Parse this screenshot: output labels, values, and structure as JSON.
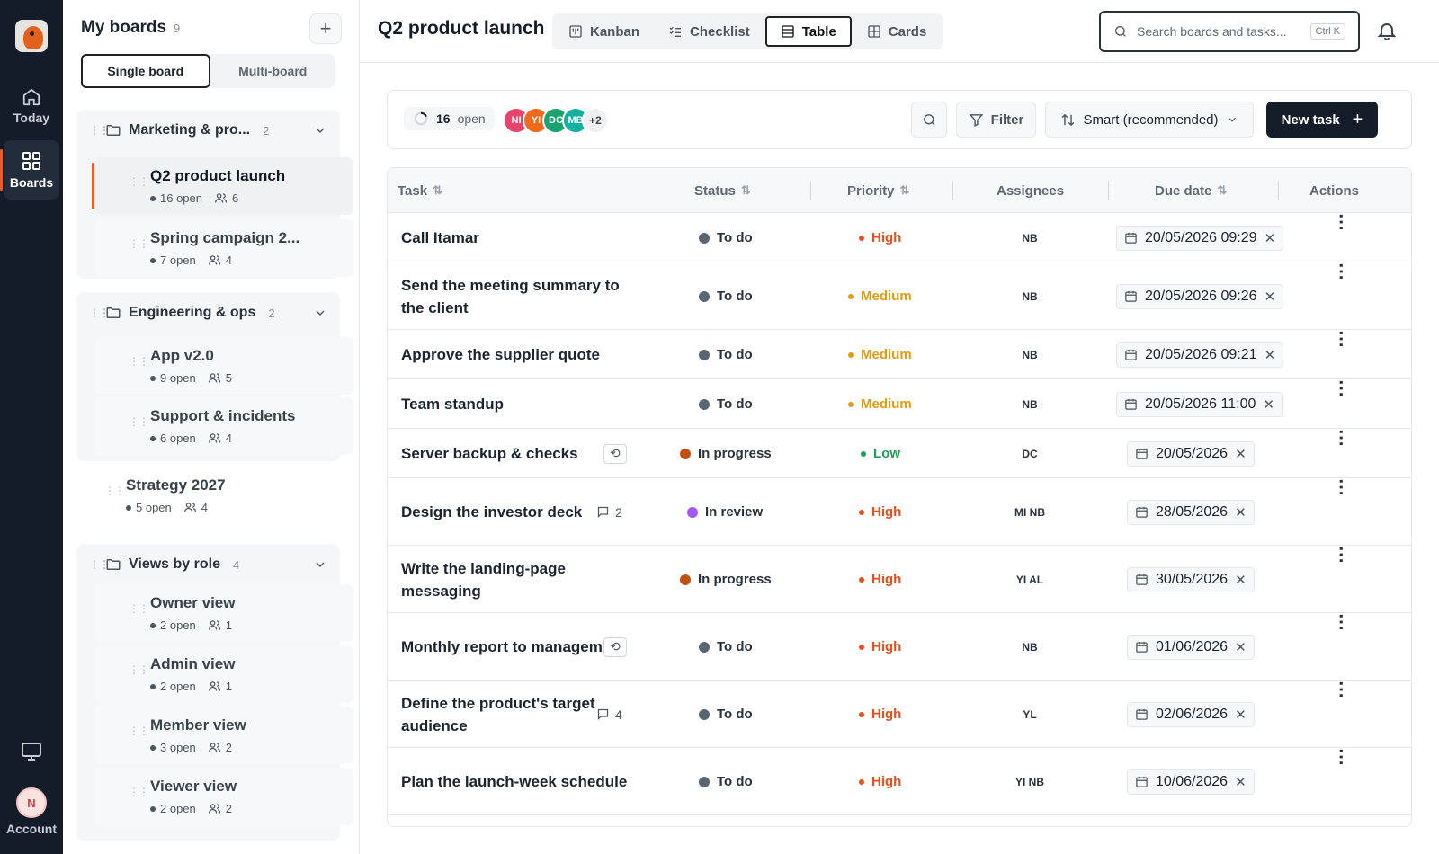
{
  "rail": {
    "today_label": "Today",
    "boards_label": "Boards",
    "account_label": "Account",
    "account_initial": "N"
  },
  "sidebar": {
    "title": "My boards",
    "count": "9",
    "add_label": "+",
    "mode_single": "Single board",
    "mode_multi": "Multi-board",
    "groups": [
      {
        "name": "Marketing & pro...",
        "count": "2"
      },
      {
        "name": "Engineering & ops",
        "count": "2"
      },
      {
        "name": "Views by role",
        "count": "4"
      }
    ],
    "boards": [
      {
        "name": "Q2 product launch",
        "open": "16 open",
        "members": "6"
      },
      {
        "name": "Spring campaign 2...",
        "open": "7 open",
        "members": "4"
      },
      {
        "name": "App v2.0",
        "open": "9 open",
        "members": "5"
      },
      {
        "name": "Support & incidents",
        "open": "6 open",
        "members": "4"
      },
      {
        "name": "Strategy 2027",
        "open": "5 open",
        "members": "4"
      },
      {
        "name": "Owner view",
        "open": "2 open",
        "members": "1"
      },
      {
        "name": "Admin view",
        "open": "2 open",
        "members": "1"
      },
      {
        "name": "Member view",
        "open": "3 open",
        "members": "2"
      },
      {
        "name": "Viewer view",
        "open": "2 open",
        "members": "2"
      }
    ]
  },
  "header": {
    "title": "Q2 product launch",
    "tabs": [
      "Kanban",
      "Checklist",
      "Table",
      "Cards"
    ],
    "active_tab": "Table",
    "search_placeholder": "Search boards and tasks...",
    "search_shortcut": "Ctrl K"
  },
  "toolbar": {
    "open_count": "16",
    "open_label": "open",
    "avatars": [
      {
        "initials": "NI",
        "color": "#e8436b"
      },
      {
        "initials": "YI",
        "color": "#f06a1d"
      },
      {
        "initials": "DC",
        "color": "#1aa36f"
      },
      {
        "initials": "MB",
        "color": "#16b0a0"
      }
    ],
    "avatars_more": "+2",
    "filter_label": "Filter",
    "sort_label": "Smart (recommended)",
    "new_task_label": "New task"
  },
  "table": {
    "columns": [
      "Task",
      "Status",
      "Priority",
      "Assignees",
      "Due date",
      "Actions"
    ],
    "rows": [
      {
        "task": "Call Itamar",
        "status": "To do",
        "status_color": "#5a6573",
        "priority": "High",
        "priority_color": "#e5501e",
        "assignees": "NB",
        "due": "20/05/2026 09:29",
        "badge": ""
      },
      {
        "task": "Send the meeting summary to the client",
        "status": "To do",
        "status_color": "#5a6573",
        "priority": "Medium",
        "priority_color": "#e49b0f",
        "assignees": "NB",
        "due": "20/05/2026 09:26",
        "badge": ""
      },
      {
        "task": "Approve the supplier quote",
        "status": "To do",
        "status_color": "#5a6573",
        "priority": "Medium",
        "priority_color": "#e49b0f",
        "assignees": "NB",
        "due": "20/05/2026 09:21",
        "badge": ""
      },
      {
        "task": "Team standup",
        "status": "To do",
        "status_color": "#5a6573",
        "priority": "Medium",
        "priority_color": "#e49b0f",
        "assignees": "NB",
        "due": "20/05/2026 11:00",
        "badge": ""
      },
      {
        "task": "Server backup & checks",
        "status": "In progress",
        "status_color": "#c2500e",
        "priority": "Low",
        "priority_color": "#1f9e57",
        "assignees": "DC",
        "due": "20/05/2026",
        "badge": "repeat"
      },
      {
        "task": "Design the investor deck",
        "status": "In review",
        "status_color": "#a855f7",
        "priority": "High",
        "priority_color": "#e5501e",
        "assignees": "MI NB",
        "due": "28/05/2026",
        "badge": "2"
      },
      {
        "task": "Write the landing-page messaging",
        "status": "In progress",
        "status_color": "#c2500e",
        "priority": "High",
        "priority_color": "#e5501e",
        "assignees": "YI AL",
        "due": "30/05/2026",
        "badge": ""
      },
      {
        "task": "Monthly report to management",
        "status": "To do",
        "status_color": "#5a6573",
        "priority": "High",
        "priority_color": "#e5501e",
        "assignees": "NB",
        "due": "01/06/2026",
        "badge": "repeat"
      },
      {
        "task": "Define the product's target audience",
        "status": "To do",
        "status_color": "#5a6573",
        "priority": "High",
        "priority_color": "#e5501e",
        "assignees": "YL",
        "due": "02/06/2026",
        "badge": "4"
      },
      {
        "task": "Plan the launch-week schedule",
        "status": "To do",
        "status_color": "#5a6573",
        "priority": "High",
        "priority_color": "#e5501e",
        "assignees": "YI NB",
        "due": "10/06/2026",
        "badge": ""
      }
    ]
  }
}
